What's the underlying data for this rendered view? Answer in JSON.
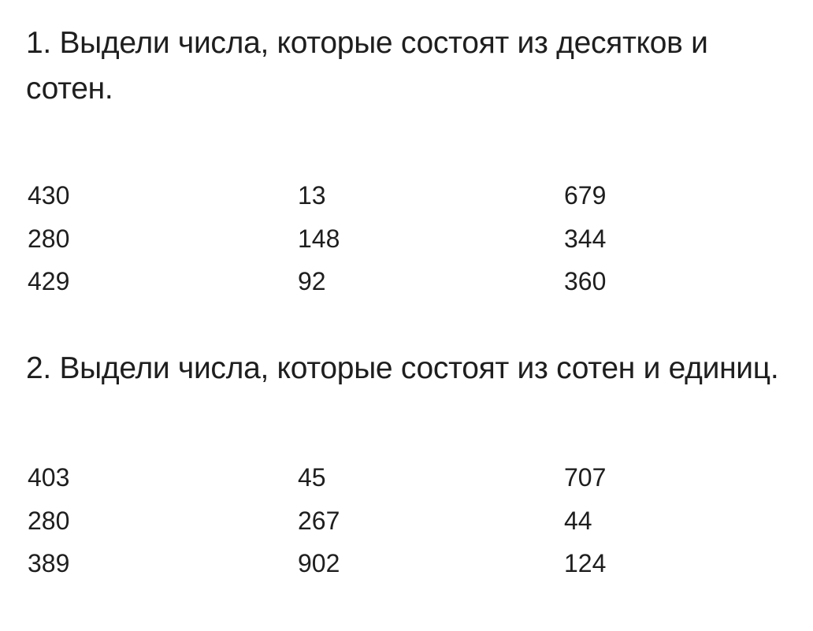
{
  "tasks": [
    {
      "text": "1. Выдели числа, которые состоят из десятков и сотен.",
      "numbers": [
        [
          "430",
          "13",
          "679"
        ],
        [
          "280",
          "148",
          "344"
        ],
        [
          "429",
          "92",
          "360"
        ]
      ]
    },
    {
      "text": "2. Выдели числа, которые состоят из сотен и единиц.",
      "numbers": [
        [
          "403",
          "45",
          "707"
        ],
        [
          "280",
          "267",
          "44"
        ],
        [
          "389",
          "902",
          "124"
        ]
      ]
    }
  ]
}
